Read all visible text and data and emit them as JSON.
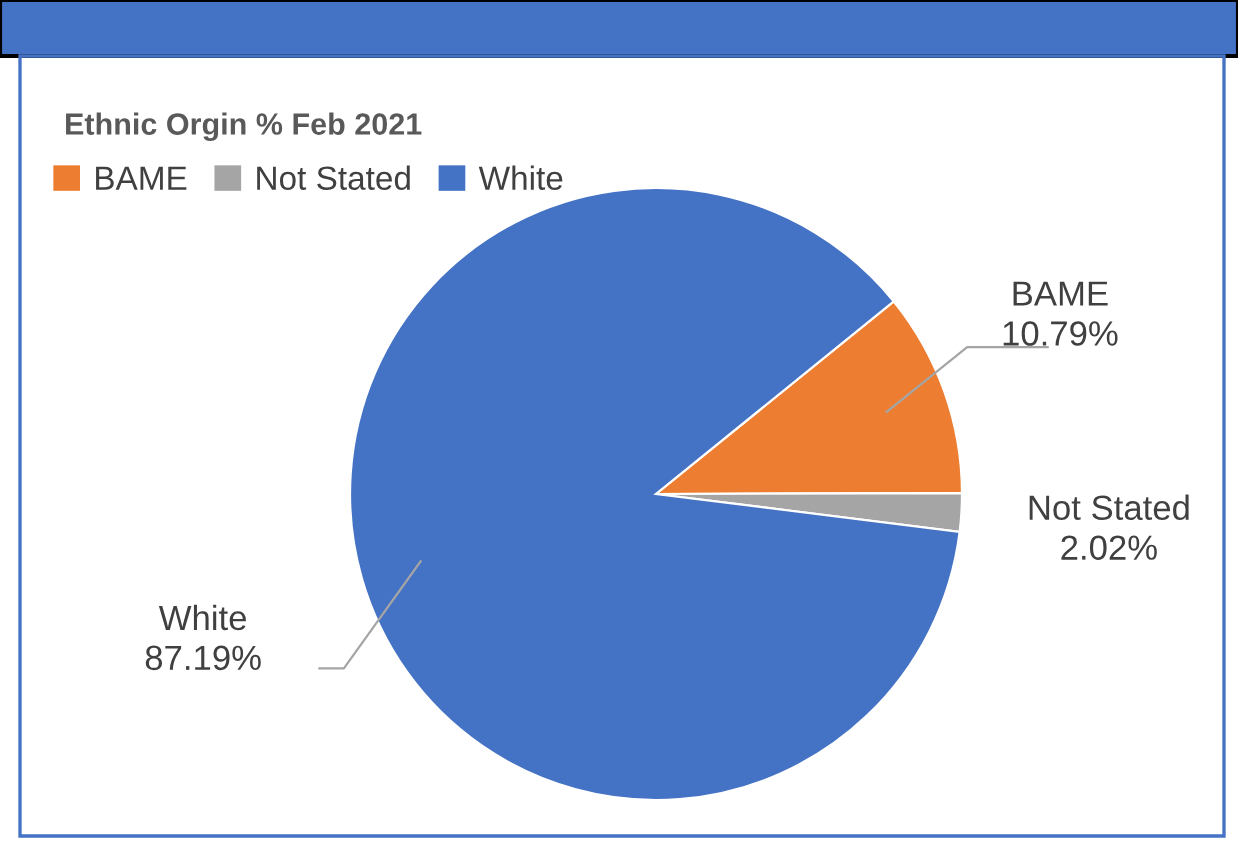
{
  "chart_data": {
    "type": "pie",
    "title": "Ethnic Orgin % Feb 2021",
    "categories": [
      "BAME",
      "Not Stated",
      "White"
    ],
    "values": [
      10.79,
      2.02,
      87.19
    ],
    "colors": [
      "#ed7d31",
      "#a5a5a5",
      "#4472c4"
    ],
    "value_labels": [
      "10.79%",
      "2.02%",
      "87.19%"
    ],
    "legend": "top left"
  }
}
